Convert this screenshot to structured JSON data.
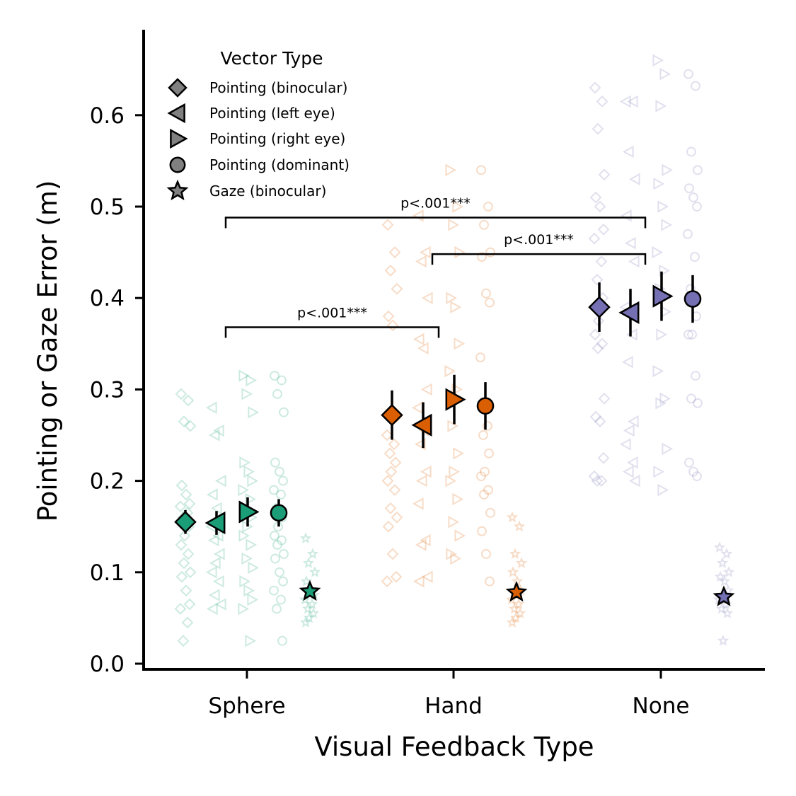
{
  "chart_data": {
    "type": "scatter",
    "xlabel": "Visual Feedback Type",
    "ylabel": "Pointing or Gaze Error (m)",
    "categories": [
      "Sphere",
      "Hand",
      "None"
    ],
    "ylim": [
      0.0,
      0.69
    ],
    "yticks": [
      0.0,
      0.1,
      0.2,
      0.3,
      0.4,
      0.5,
      0.6
    ],
    "ytick_labels": [
      "0.0",
      "0.1",
      "0.2",
      "0.3",
      "0.4",
      "0.5",
      "0.6"
    ],
    "grid": false,
    "legend": {
      "title": "Vector Type",
      "placement": "top-left",
      "entries": [
        {
          "label": "Pointing (binocular)",
          "marker": "diamond"
        },
        {
          "label": "Pointing (left eye)",
          "marker": "triangle-left"
        },
        {
          "label": "Pointing (right eye)",
          "marker": "triangle-right"
        },
        {
          "label": "Pointing (dominant)",
          "marker": "circle"
        },
        {
          "label": "Gaze (binocular)",
          "marker": "star"
        }
      ]
    },
    "category_colors": [
      "#1b9e77",
      "#d95f02",
      "#7570b3"
    ],
    "series": [
      {
        "name": "Pointing (binocular)",
        "marker": "diamond",
        "means": [
          0.155,
          0.272,
          0.39
        ],
        "errors": [
          0.013,
          0.027,
          0.027
        ]
      },
      {
        "name": "Pointing (left eye)",
        "marker": "triangle-left",
        "means": [
          0.154,
          0.261,
          0.384
        ],
        "errors": [
          0.013,
          0.025,
          0.026
        ]
      },
      {
        "name": "Pointing (right eye)",
        "marker": "triangle-right",
        "means": [
          0.166,
          0.289,
          0.402
        ],
        "errors": [
          0.016,
          0.027,
          0.027
        ]
      },
      {
        "name": "Pointing (dominant)",
        "marker": "circle",
        "means": [
          0.165,
          0.282,
          0.399
        ],
        "errors": [
          0.015,
          0.026,
          0.026
        ]
      },
      {
        "name": "Gaze (binocular)",
        "marker": "star",
        "means": [
          0.079,
          0.078,
          0.073
        ],
        "errors": [
          0.006,
          0.006,
          0.006
        ]
      }
    ],
    "raw_points": {
      "Sphere": {
        "diamond": [
          0.295,
          0.288,
          0.265,
          0.26,
          0.195,
          0.185,
          0.175,
          0.172,
          0.165,
          0.16,
          0.15,
          0.14,
          0.13,
          0.12,
          0.11,
          0.1,
          0.095,
          0.08,
          0.065,
          0.06,
          0.045,
          0.025
        ],
        "triangle-left": [
          0.28,
          0.255,
          0.25,
          0.2,
          0.185,
          0.17,
          0.16,
          0.15,
          0.14,
          0.135,
          0.12,
          0.11,
          0.1,
          0.09,
          0.075,
          0.065,
          0.06
        ],
        "triangle-right": [
          0.315,
          0.31,
          0.295,
          0.275,
          0.22,
          0.21,
          0.2,
          0.19,
          0.18,
          0.17,
          0.16,
          0.15,
          0.14,
          0.13,
          0.115,
          0.105,
          0.09,
          0.08,
          0.07,
          0.06,
          0.025
        ],
        "circle": [
          0.315,
          0.31,
          0.295,
          0.275,
          0.22,
          0.21,
          0.2,
          0.19,
          0.185,
          0.17,
          0.16,
          0.15,
          0.14,
          0.135,
          0.13,
          0.12,
          0.115,
          0.1,
          0.09,
          0.08,
          0.07,
          0.06,
          0.025
        ],
        "star": [
          0.137,
          0.12,
          0.11,
          0.1,
          0.09,
          0.08,
          0.075,
          0.07,
          0.065,
          0.06,
          0.055,
          0.05,
          0.045
        ]
      },
      "Hand": {
        "diamond": [
          0.48,
          0.45,
          0.43,
          0.41,
          0.38,
          0.37,
          0.27,
          0.25,
          0.24,
          0.23,
          0.22,
          0.21,
          0.2,
          0.19,
          0.17,
          0.16,
          0.15,
          0.12,
          0.095,
          0.09
        ],
        "triangle-left": [
          0.49,
          0.45,
          0.44,
          0.4,
          0.355,
          0.345,
          0.3,
          0.28,
          0.255,
          0.24,
          0.21,
          0.2,
          0.175,
          0.135,
          0.13,
          0.095,
          0.09
        ],
        "triangle-right": [
          0.54,
          0.5,
          0.48,
          0.45,
          0.4,
          0.39,
          0.35,
          0.32,
          0.3,
          0.26,
          0.23,
          0.21,
          0.2,
          0.18,
          0.155,
          0.14,
          0.12,
          0.115
        ],
        "circle": [
          0.54,
          0.5,
          0.48,
          0.45,
          0.445,
          0.405,
          0.395,
          0.335,
          0.26,
          0.25,
          0.23,
          0.21,
          0.205,
          0.19,
          0.185,
          0.165,
          0.145,
          0.12,
          0.09
        ],
        "star": [
          0.16,
          0.15,
          0.12,
          0.11,
          0.1,
          0.09,
          0.08,
          0.07,
          0.065,
          0.06,
          0.055,
          0.05,
          0.045
        ]
      },
      "None": {
        "diamond": [
          0.63,
          0.615,
          0.585,
          0.535,
          0.51,
          0.5,
          0.475,
          0.465,
          0.44,
          0.42,
          0.4,
          0.375,
          0.36,
          0.35,
          0.345,
          0.29,
          0.27,
          0.265,
          0.225,
          0.205,
          0.2,
          0.2
        ],
        "triangle-left": [
          0.615,
          0.615,
          0.56,
          0.53,
          0.49,
          0.46,
          0.44,
          0.39,
          0.36,
          0.33,
          0.265,
          0.255,
          0.24,
          0.22,
          0.21,
          0.2
        ],
        "triangle-right": [
          0.66,
          0.645,
          0.61,
          0.54,
          0.525,
          0.5,
          0.48,
          0.45,
          0.43,
          0.41,
          0.385,
          0.36,
          0.32,
          0.29,
          0.285,
          0.235,
          0.21,
          0.19
        ],
        "circle": [
          0.645,
          0.632,
          0.56,
          0.54,
          0.52,
          0.51,
          0.5,
          0.47,
          0.445,
          0.41,
          0.38,
          0.36,
          0.36,
          0.315,
          0.29,
          0.285,
          0.22,
          0.21,
          0.205
        ],
        "star": [
          0.127,
          0.12,
          0.11,
          0.1,
          0.095,
          0.09,
          0.08,
          0.07,
          0.065,
          0.06,
          0.055,
          0.025
        ]
      }
    },
    "significance": [
      {
        "from_category": 0,
        "to_category": 1,
        "y": 0.368,
        "label": "p<.001***"
      },
      {
        "from_category": 0,
        "to_category": 2,
        "y": 0.488,
        "label": "p<.001***"
      },
      {
        "from_category": 1,
        "to_category": 2,
        "y": 0.448,
        "label": "p<.001***"
      }
    ]
  }
}
